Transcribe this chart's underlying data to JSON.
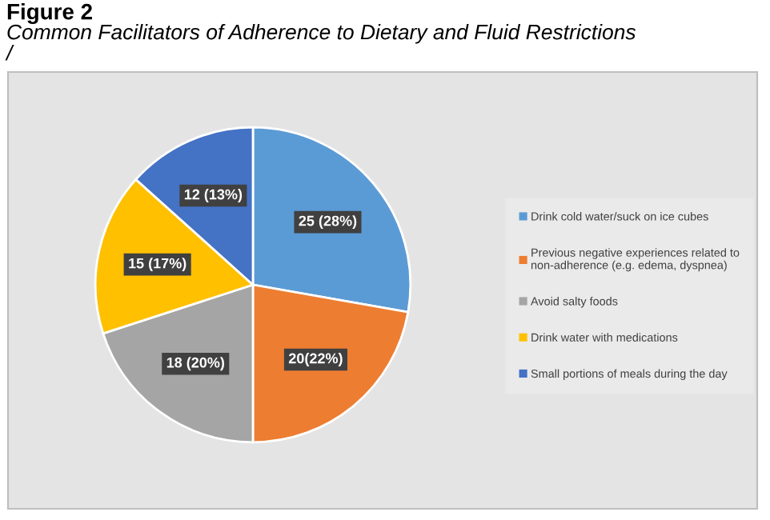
{
  "chart_data": {
    "type": "pie",
    "title": "Figure 2",
    "subtitle": "Common Facilitators of Adherence to Dietary and Fluid Restrictions",
    "annotations": [
      "/"
    ],
    "categories": [
      "Drink cold water/suck on ice cubes",
      "Previous negative experiences related to\nnon-adherence (e.g. edema, dyspnea)",
      "Avoid salty foods",
      "Drink water with medications",
      "Small portions of meals during the day"
    ],
    "values": [
      25,
      20,
      18,
      15,
      12
    ],
    "value_labels": [
      "25 (28%)",
      "20(22%)",
      "18 (20%)",
      "15 (17%)",
      "12 (13%)"
    ],
    "colors": [
      "#5b9bd5",
      "#ed7d31",
      "#a5a5a5",
      "#ffc000",
      "#4472c4"
    ],
    "legend": "right"
  }
}
